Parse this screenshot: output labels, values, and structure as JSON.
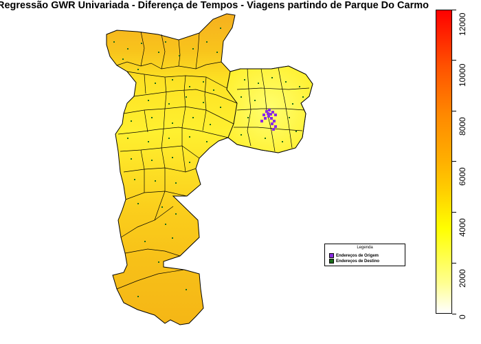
{
  "title": "Regressão GWR Univariada - Diferença de Tempos - Viagens partindo de Parque Do Carmo",
  "legend": {
    "title": "Legenda",
    "items": [
      {
        "label": "Endereços de Origem",
        "color": "#8a2be2"
      },
      {
        "label": "Endereços de Destino",
        "color": "#1a6b1a"
      }
    ]
  },
  "colorbar": {
    "min": 0,
    "max": 12000,
    "ticks": [
      "0",
      "2000",
      "4000",
      "6000",
      "8000",
      "10000",
      "12000"
    ]
  },
  "colors": {
    "north_region": "#f5b21d",
    "center_region": "#ffec20",
    "east_region": "#ffff3a",
    "south_region": "#fbc41a",
    "origin_points": "#8a2be2",
    "destination_points": "#1a6b1a"
  }
}
